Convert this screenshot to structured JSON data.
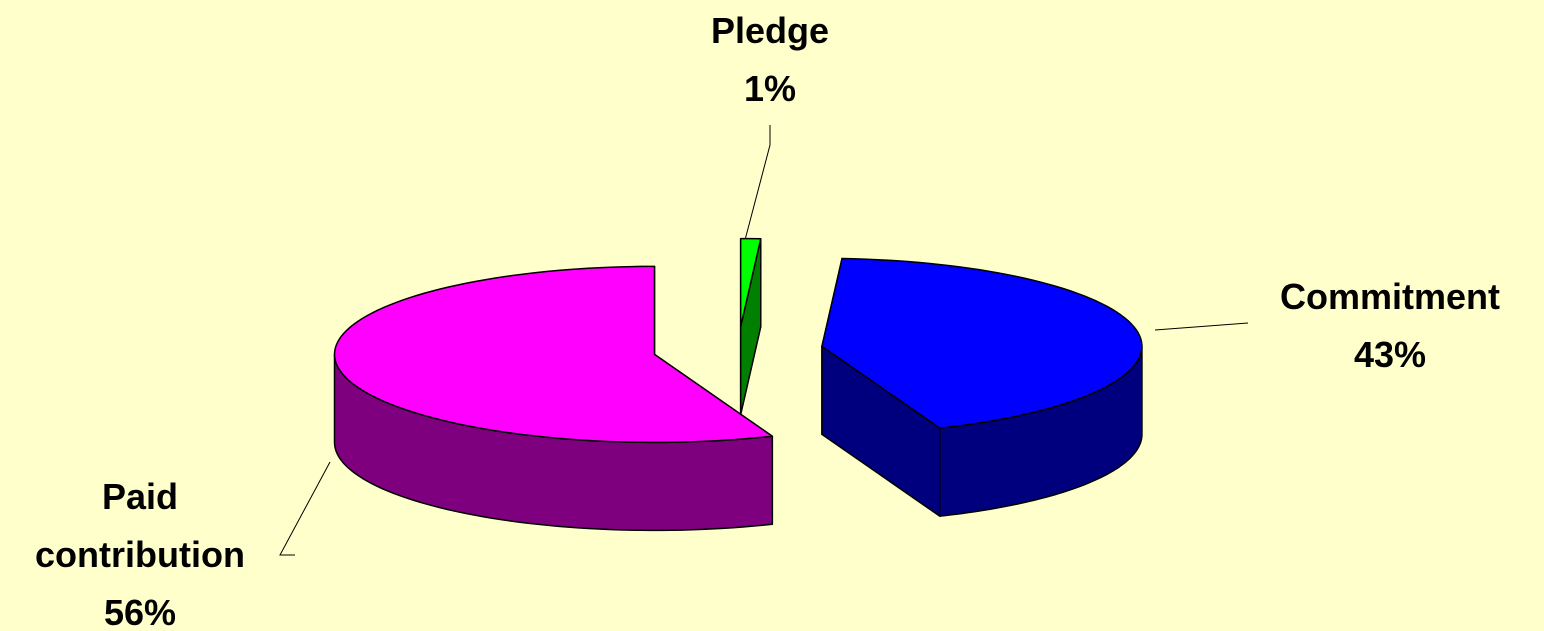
{
  "chart_data": {
    "type": "pie3d",
    "categories": [
      "Pledge",
      "Commitment",
      "Paid contribution"
    ],
    "values": [
      1,
      43,
      56
    ],
    "value_labels": [
      "1%",
      "43%",
      "56%"
    ],
    "colors": [
      "#00ff00",
      "#0000ff",
      "#ff00ff"
    ]
  }
}
